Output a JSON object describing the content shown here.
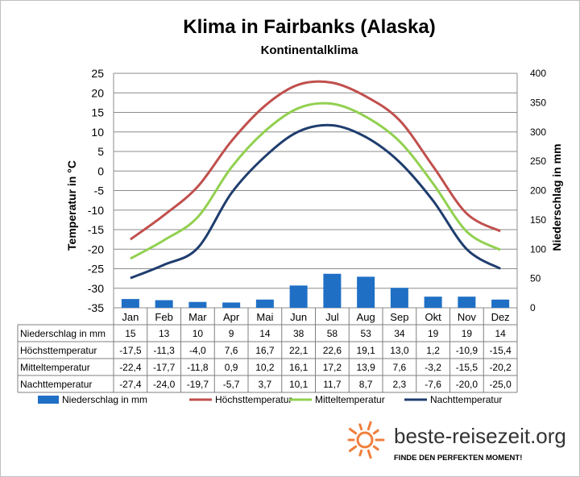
{
  "chart_data": {
    "type": "bar+line",
    "title": "Klima in Fairbanks (Alaska)",
    "subtitle": "Kontinentalklima",
    "ylabel_left": "Temperatur in °C",
    "ylabel_right": "Niederschlag in mm",
    "ylim_left": [
      -35,
      25
    ],
    "yticks_left": [
      25,
      20,
      15,
      10,
      5,
      0,
      -5,
      -10,
      -15,
      -20,
      -25,
      -30,
      -35
    ],
    "ylim_right": [
      0,
      400
    ],
    "yticks_right": [
      400,
      350,
      300,
      250,
      200,
      150,
      100,
      50,
      0
    ],
    "grid": true,
    "legend_position": "bottom",
    "categories": [
      "Jan",
      "Feb",
      "Mar",
      "Apr",
      "Mai",
      "Jun",
      "Jul",
      "Aug",
      "Sep",
      "Okt",
      "Nov",
      "Dez"
    ],
    "series": [
      {
        "name": "Niederschlag in mm",
        "kind": "bar",
        "axis": "right",
        "color": "#1f6fc5",
        "values": [
          15,
          13,
          10,
          9,
          14,
          38,
          58,
          53,
          34,
          19,
          19,
          14
        ],
        "labels": [
          "15",
          "13",
          "10",
          "9",
          "14",
          "38",
          "58",
          "53",
          "34",
          "19",
          "19",
          "14"
        ]
      },
      {
        "name": "Höchsttemperatur",
        "kind": "line",
        "axis": "left",
        "color": "#c0504d",
        "values": [
          -17.5,
          -11.3,
          -4.0,
          7.6,
          16.7,
          22.1,
          22.6,
          19.1,
          13.0,
          1.2,
          -10.9,
          -15.4
        ],
        "labels": [
          "-17,5",
          "-11,3",
          "-4,0",
          "7,6",
          "16,7",
          "22,1",
          "22,6",
          "19,1",
          "13,0",
          "1,2",
          "-10,9",
          "-15,4"
        ]
      },
      {
        "name": "Mitteltemperatur",
        "kind": "line",
        "axis": "left",
        "color": "#92d050",
        "values": [
          -22.4,
          -17.7,
          -11.8,
          0.9,
          10.2,
          16.1,
          17.2,
          13.9,
          7.6,
          -3.2,
          -15.5,
          -20.2
        ],
        "labels": [
          "-22,4",
          "-17,7",
          "-11,8",
          "0,9",
          "10,2",
          "16,1",
          "17,2",
          "13,9",
          "7,6",
          "-3,2",
          "-15,5",
          "-20,2"
        ]
      },
      {
        "name": "Nachttemperatur",
        "kind": "line",
        "axis": "left",
        "color": "#1f3d6e",
        "values": [
          -27.4,
          -24.0,
          -19.7,
          -5.7,
          3.7,
          10.1,
          11.7,
          8.7,
          2.3,
          -7.6,
          -20.0,
          -25.0
        ],
        "labels": [
          "-27,4",
          "-24,0",
          "-19,7",
          "-5,7",
          "3,7",
          "10,1",
          "11,7",
          "8,7",
          "2,3",
          "-7,6",
          "-20,0",
          "-25,0"
        ]
      }
    ]
  },
  "branding": {
    "site": "beste-reisezeit.org",
    "tagline": "FINDE DEN PERFEKTEN MOMENT!",
    "sun_color": "#f07f3c"
  },
  "colors": {
    "grid": "#8c8c8c",
    "table_border": "#7f7f7f"
  }
}
